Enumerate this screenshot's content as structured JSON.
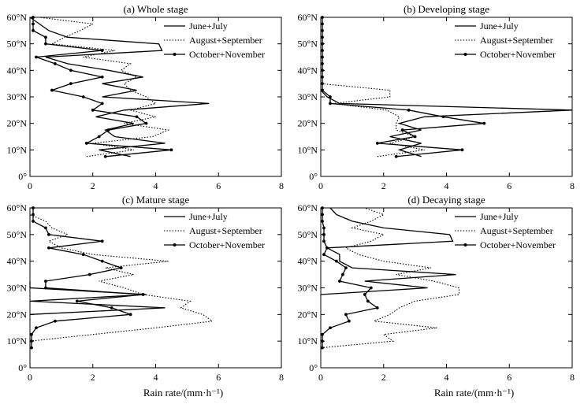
{
  "xlabel": "Rain rate/(mm·h⁻¹)",
  "colors": {
    "line": "#000000",
    "background": "#ffffff"
  },
  "chart_data": [
    {
      "type": "line",
      "title": "(a) Whole stage",
      "xlabel": "Rain rate/(mm·h⁻¹)",
      "ylabel": "",
      "xlim": [
        0,
        8
      ],
      "ylim": [
        0,
        60
      ],
      "xticks": [
        "0",
        "2",
        "4",
        "6",
        "8"
      ],
      "yticks": [
        "0°",
        "10°N",
        "20°N",
        "30°N",
        "40°N",
        "50°N",
        "60°N"
      ],
      "legend": [
        "June+July",
        "August+September",
        "October+November"
      ],
      "legend_position": "top-right",
      "series": [
        {
          "name": "June+July",
          "style": "solid",
          "lat": [
            7.5,
            10,
            12.5,
            15,
            17.5,
            20,
            22.5,
            25,
            27.5,
            30,
            32.5,
            35,
            37.5,
            40,
            42.5,
            45,
            47.5,
            50,
            52.5,
            55,
            57.5,
            60
          ],
          "values": [
            3.2,
            2.2,
            4.3,
            2.7,
            2.4,
            3.3,
            2.1,
            3.0,
            5.7,
            2.3,
            3.4,
            2.3,
            3.6,
            2.5,
            1.2,
            0.5,
            4.2,
            4.1,
            1.2,
            0.6,
            0.3,
            0.0
          ]
        },
        {
          "name": "August+September",
          "style": "dotted",
          "lat": [
            7.5,
            10,
            12.5,
            15,
            17.5,
            20,
            22.5,
            25,
            27.5,
            30,
            32.5,
            35,
            37.5,
            40,
            42.5,
            45,
            47.5,
            50,
            52.5,
            55,
            57.5,
            60
          ],
          "values": [
            1.8,
            3.3,
            2.0,
            3.9,
            4.4,
            3.0,
            4.0,
            3.2,
            4.0,
            3.7,
            3.2,
            3.0,
            3.4,
            2.9,
            3.2,
            1.7,
            2.7,
            0.7,
            1.1,
            1.6,
            2.0,
            0.3
          ]
        },
        {
          "name": "October+November",
          "style": "solid-marker",
          "lat": [
            7.5,
            10,
            12.5,
            15,
            17.5,
            20,
            22.5,
            25,
            27.5,
            30,
            32.5,
            35,
            37.5,
            40,
            42.5,
            45,
            47.5,
            50,
            52.5,
            55,
            57.5,
            60
          ],
          "values": [
            2.4,
            4.5,
            1.8,
            2.2,
            2.5,
            3.7,
            3.4,
            2.0,
            2.3,
            1.7,
            0.7,
            1.3,
            2.3,
            1.3,
            0.8,
            0.2,
            2.3,
            0.5,
            0.5,
            0.1,
            0.1,
            0.1
          ]
        }
      ]
    },
    {
      "type": "line",
      "title": "(b) Developing stage",
      "xlabel": "Rain rate/(mm·h⁻¹)",
      "ylabel": "",
      "xlim": [
        0,
        8
      ],
      "ylim": [
        0,
        60
      ],
      "xticks": [
        "0",
        "2",
        "4",
        "6",
        "8"
      ],
      "yticks": [
        "0°",
        "10°N",
        "20°N",
        "30°N",
        "40°N",
        "50°N",
        "60°N"
      ],
      "legend": [
        "June+July",
        "August+September",
        "October+November"
      ],
      "legend_position": "top-right",
      "series": [
        {
          "name": "June+July",
          "style": "solid",
          "lat": [
            7.5,
            10,
            12.5,
            15,
            17.5,
            20,
            22.5,
            25,
            27.5,
            30,
            32.5
          ],
          "values": [
            3.2,
            2.5,
            3.2,
            2.2,
            3.2,
            2.5,
            3.3,
            8.0,
            0.6,
            0.2,
            0.0
          ]
        },
        {
          "name": "August+September",
          "style": "dotted",
          "lat": [
            7.5,
            10,
            12.5,
            15,
            17.5,
            20,
            22.5,
            25,
            27.5,
            30,
            32.5,
            35
          ],
          "values": [
            1.8,
            3.3,
            2.2,
            3.0,
            2.4,
            2.4,
            2.5,
            2.1,
            0.4,
            2.2,
            2.2,
            0.0
          ]
        },
        {
          "name": "October+November",
          "style": "solid-marker",
          "lat": [
            7.5,
            10,
            12.5,
            15,
            17.5,
            20,
            22.5,
            25,
            27.5,
            30,
            32.5,
            35,
            37.5,
            40,
            42.5,
            45,
            47.5,
            50,
            52.5,
            55,
            57.5,
            60
          ],
          "values": [
            2.4,
            4.5,
            1.8,
            3.0,
            2.6,
            5.2,
            3.9,
            2.8,
            0.3,
            0.3,
            0.05,
            0.05,
            0.05,
            0.05,
            0.05,
            0.05,
            0.05,
            0.05,
            0.05,
            0.05,
            0.05,
            0.05
          ]
        }
      ]
    },
    {
      "type": "line",
      "title": "(c) Mature stage",
      "xlabel": "Rain rate/(mm·h⁻¹)",
      "ylabel": "",
      "xlim": [
        0,
        8
      ],
      "ylim": [
        0,
        60
      ],
      "xticks": [
        "0",
        "2",
        "4",
        "6",
        "8"
      ],
      "yticks": [
        "0°",
        "10°N",
        "20°N",
        "30°N",
        "40°N",
        "50°N",
        "60°N"
      ],
      "legend": [
        "June+July",
        "August+September",
        "October+November"
      ],
      "legend_position": "top-right",
      "series": [
        {
          "name": "June+July",
          "style": "solid",
          "lat": [
            20,
            22.5,
            25,
            27.5,
            30,
            32.5
          ],
          "values": [
            0.0,
            4.3,
            0.0,
            3.7,
            0.0,
            0.0
          ]
        },
        {
          "name": "August+September",
          "style": "dotted",
          "lat": [
            10,
            12.5,
            15,
            17.5,
            20,
            22.5,
            25,
            27.5,
            30,
            32.5,
            35,
            37.5,
            40,
            42.5,
            45,
            47.5,
            50,
            52.5,
            55,
            57.5
          ],
          "values": [
            0.0,
            2.0,
            4.0,
            5.8,
            5.5,
            4.8,
            5.1,
            3.6,
            3.0,
            2.2,
            3.3,
            2.4,
            4.4,
            2.0,
            1.0,
            0.6,
            1.2,
            0.7,
            0.5,
            0.0
          ]
        },
        {
          "name": "October+November",
          "style": "solid-marker",
          "lat": [
            7.5,
            10,
            12.5,
            15,
            17.5,
            20,
            22.5,
            25,
            27.5,
            30,
            32.5,
            35,
            37.5,
            40,
            42.5,
            45,
            47.5,
            50,
            52.5,
            55,
            57.5,
            60
          ],
          "values": [
            0.05,
            0.05,
            0.05,
            0.2,
            0.8,
            3.2,
            2.6,
            1.5,
            3.6,
            0.5,
            0.5,
            1.9,
            2.9,
            2.3,
            1.7,
            0.6,
            2.3,
            0.6,
            0.5,
            0.1,
            0.1,
            0.1
          ]
        }
      ]
    },
    {
      "type": "line",
      "title": "(d) Decaying stage",
      "xlabel": "Rain rate/(mm·h⁻¹)",
      "ylabel": "",
      "xlim": [
        0,
        8
      ],
      "ylim": [
        0,
        60
      ],
      "xticks": [
        "0",
        "2",
        "4",
        "6",
        "8"
      ],
      "yticks": [
        "0°",
        "10°N",
        "20°N",
        "30°N",
        "40°N",
        "50°N",
        "60°N"
      ],
      "legend": [
        "June+July",
        "August+September",
        "October+November"
      ],
      "legend_position": "top-right",
      "series": [
        {
          "name": "June+July",
          "style": "solid",
          "lat": [
            27.5,
            30,
            32.5,
            35,
            37.5,
            40,
            42.5,
            45,
            47.5,
            50,
            52.5,
            55,
            57.5,
            60
          ],
          "values": [
            0.0,
            3.4,
            1.4,
            4.3,
            1.0,
            0.6,
            0.6,
            0.2,
            4.2,
            4.1,
            2.0,
            1.0,
            0.5,
            0.3
          ]
        },
        {
          "name": "August+September",
          "style": "dotted",
          "lat": [
            7.5,
            10,
            12.5,
            15,
            17.5,
            20,
            22.5,
            25,
            27.5,
            30,
            32.5,
            35,
            37.5,
            40,
            42.5,
            45,
            47.5,
            50,
            52.5,
            55,
            57.5,
            60
          ],
          "values": [
            0.0,
            2.3,
            2.0,
            3.7,
            1.7,
            2.2,
            2.5,
            3.0,
            4.4,
            4.4,
            3.6,
            2.4,
            3.5,
            2.0,
            1.2,
            0.8,
            1.6,
            2.0,
            1.0,
            1.6,
            2.0,
            1.4
          ]
        },
        {
          "name": "October+November",
          "style": "solid-marker",
          "lat": [
            7.5,
            10,
            12.5,
            15,
            17.5,
            20,
            22.5,
            25,
            27.5,
            30,
            32.5,
            35,
            37.5,
            40,
            42.5,
            45,
            47.5,
            50,
            52.5,
            55,
            57.5,
            60
          ],
          "values": [
            0.05,
            0.05,
            0.05,
            0.3,
            0.9,
            0.8,
            1.8,
            1.5,
            1.4,
            1.6,
            0.6,
            0.7,
            0.8,
            0.5,
            0.1,
            0.2,
            0.1,
            0.1,
            0.1,
            0.05,
            0.05,
            0.05
          ]
        }
      ]
    }
  ]
}
